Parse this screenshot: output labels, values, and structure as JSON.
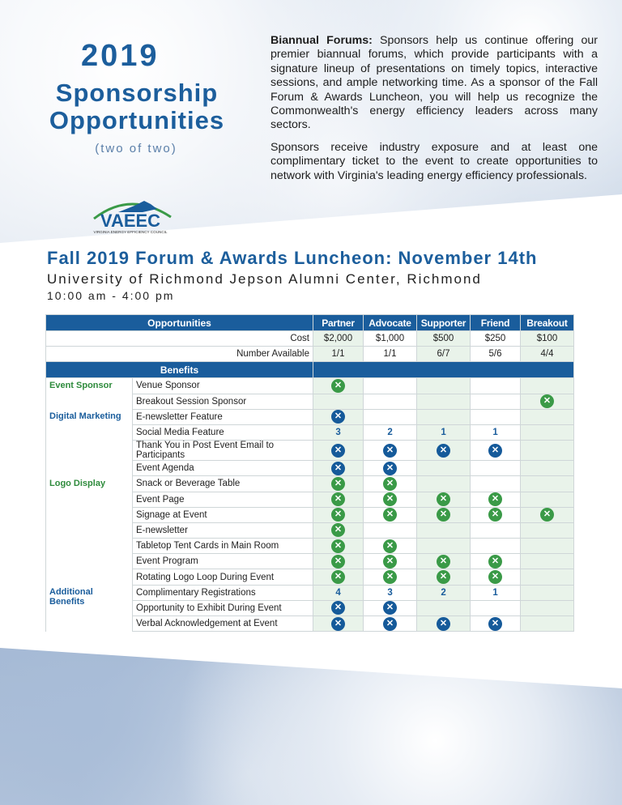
{
  "header": {
    "year": "2019",
    "title_line1": "Sponsorship",
    "title_line2": "Opportunities",
    "subtitle": "(two of two)"
  },
  "intro": {
    "lead": "Biannual Forums:",
    "p1": " Sponsors help us continue offering our premier biannual forums, which provide participants with a signature lineup of presentations on timely topics, interactive sessions, and ample networking time. As a sponsor of the Fall Forum & Awards Luncheon, you will help us recognize the Commonwealth's energy efficiency leaders across many sectors.",
    "p2": "Sponsors receive industry exposure and at least one complimentary ticket to the event to create opportunities to network with Virginia's leading energy efficiency professionals."
  },
  "logo": {
    "text": "VAEEC",
    "tagline": "VIRGINIA ENERGY EFFICIENCY COUNCIL"
  },
  "event": {
    "title": "Fall 2019 Forum & Awards Luncheon: November 14th",
    "venue": "University of Richmond Jepson Alumni Center, Richmond",
    "time": "10:00 am - 4:00 pm"
  },
  "colors": {
    "blue": "#1a5d9c",
    "green": "#3a9a47"
  },
  "table": {
    "opportunities_label": "Opportunities",
    "columns": [
      "Partner",
      "Advocate",
      "Supporter",
      "Friend",
      "Breakout"
    ],
    "cost_label": "Cost",
    "cost": [
      "$2,000",
      "$1,000",
      "$500",
      "$250",
      "$100"
    ],
    "available_label": "Number Available",
    "available": [
      "1/1",
      "1/1",
      "6/7",
      "5/6",
      "4/4"
    ],
    "benefits_label": "Benefits",
    "icon_legend": {
      "G": "green-check-icon",
      "B": "blue-check-icon"
    },
    "groups": [
      {
        "name": "Event Sponsor",
        "color": "green",
        "rows": [
          {
            "label": "Venue Sponsor",
            "cells": [
              "G",
              "",
              "",
              "",
              ""
            ]
          },
          {
            "label": "Breakout Session Sponsor",
            "cells": [
              "",
              "",
              "",
              "",
              "G"
            ]
          }
        ]
      },
      {
        "name": "Digital Marketing",
        "color": "blue",
        "rows": [
          {
            "label": "E-newsletter Feature",
            "cells": [
              "B",
              "",
              "",
              "",
              ""
            ]
          },
          {
            "label": "Social Media Feature",
            "cells": [
              "3",
              "2",
              "1",
              "1",
              ""
            ]
          },
          {
            "label": "Thank You in Post Event Email to Participants",
            "cells": [
              "B",
              "B",
              "B",
              "B",
              ""
            ]
          },
          {
            "label": "Event Agenda",
            "cells": [
              "B",
              "B",
              "",
              "",
              ""
            ]
          }
        ]
      },
      {
        "name": "Logo Display",
        "color": "green",
        "rows": [
          {
            "label": "Snack or Beverage Table",
            "cells": [
              "G",
              "G",
              "",
              "",
              ""
            ]
          },
          {
            "label": "Event Page",
            "cells": [
              "G",
              "G",
              "G",
              "G",
              ""
            ]
          },
          {
            "label": "Signage at Event",
            "cells": [
              "G",
              "G",
              "G",
              "G",
              "G"
            ]
          },
          {
            "label": "E-newsletter",
            "cells": [
              "G",
              "",
              "",
              "",
              ""
            ]
          },
          {
            "label": "Tabletop Tent Cards in Main Room",
            "cells": [
              "G",
              "G",
              "",
              "",
              ""
            ]
          },
          {
            "label": "Event Program",
            "cells": [
              "G",
              "G",
              "G",
              "G",
              ""
            ]
          },
          {
            "label": "Rotating Logo Loop During Event",
            "cells": [
              "G",
              "G",
              "G",
              "G",
              ""
            ]
          }
        ]
      },
      {
        "name": "Additional Benefits",
        "color": "blue",
        "rows": [
          {
            "label": "Complimentary Registrations",
            "cells": [
              "4",
              "3",
              "2",
              "1",
              ""
            ]
          },
          {
            "label": "Opportunity to Exhibit During Event",
            "cells": [
              "B",
              "B",
              "",
              "",
              ""
            ]
          },
          {
            "label": "Verbal Acknowledgement at Event",
            "cells": [
              "B",
              "B",
              "B",
              "B",
              ""
            ]
          }
        ]
      }
    ]
  }
}
